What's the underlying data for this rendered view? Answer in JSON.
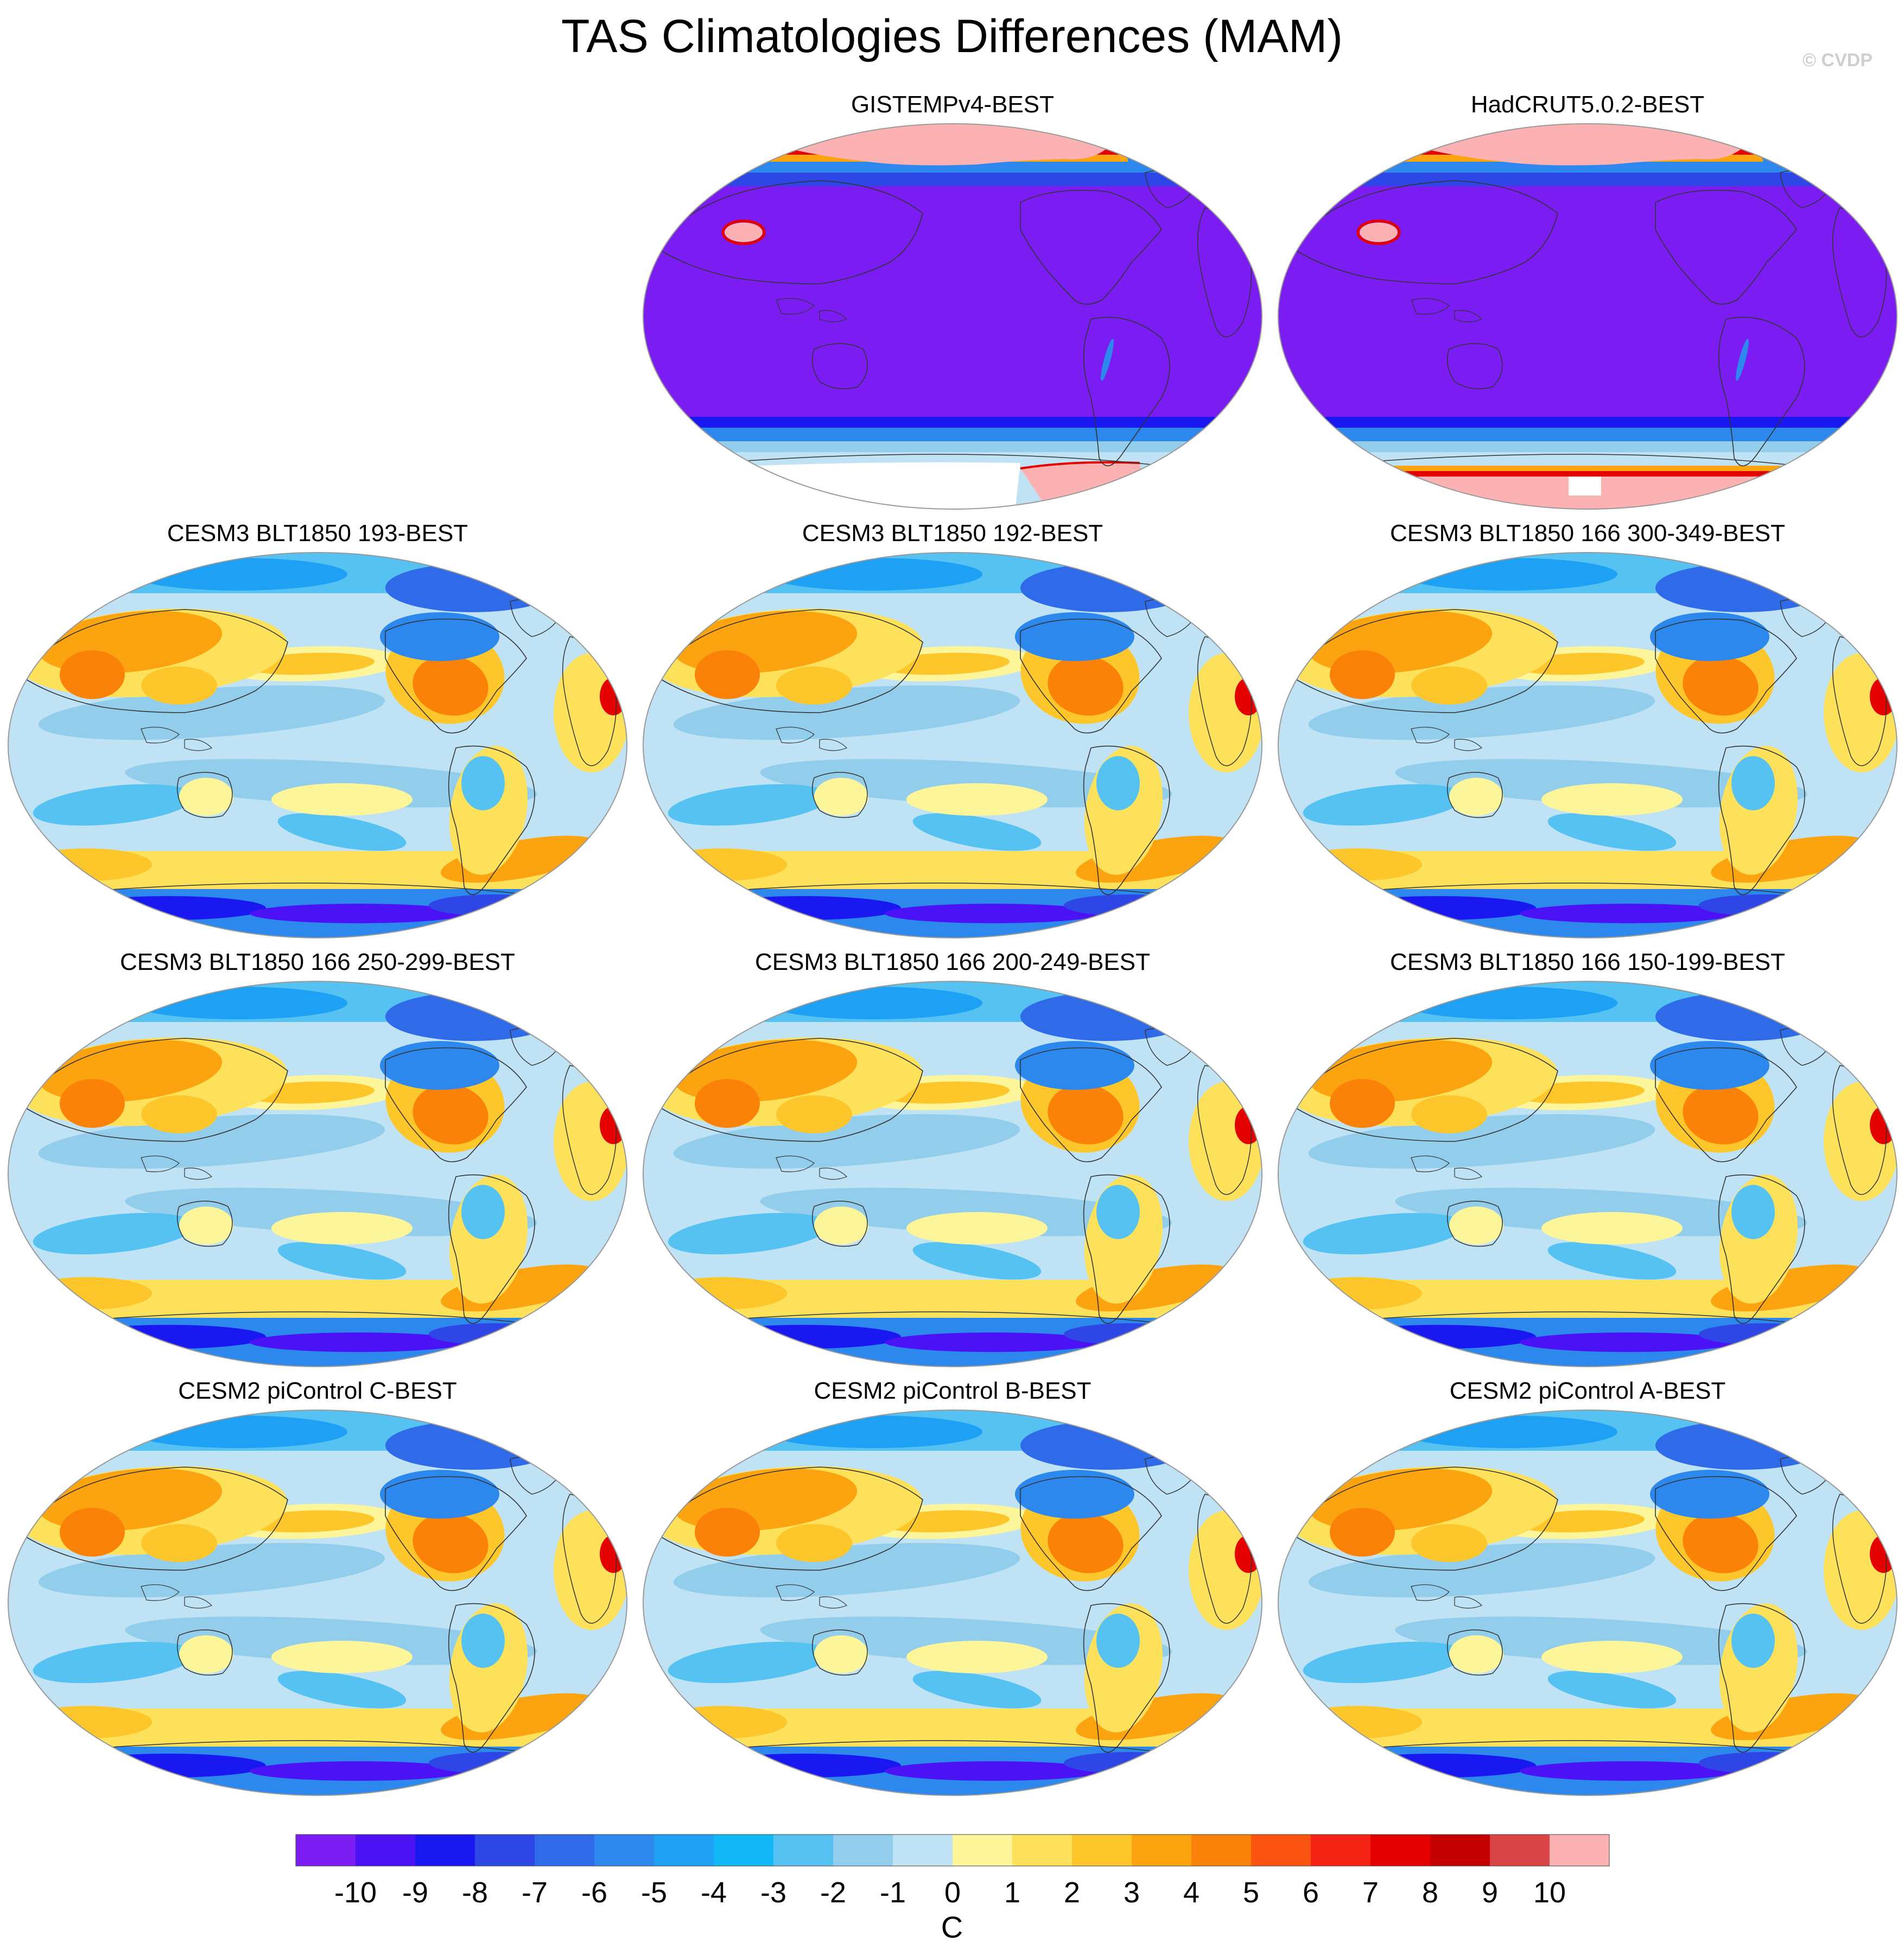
{
  "title": "TAS Climatologies Differences (MAM)",
  "watermark": "© CVDP",
  "panels": [
    {
      "label": "GISTEMPv4-BEST",
      "style": "obs_gistemp"
    },
    {
      "label": "HadCRUT5.0.2-BEST",
      "style": "obs_hadcrut"
    },
    {
      "label": "CESM3 BLT1850 193-BEST",
      "style": "model"
    },
    {
      "label": "CESM3 BLT1850 192-BEST",
      "style": "model"
    },
    {
      "label": "CESM3 BLT1850 166 300-349-BEST",
      "style": "model"
    },
    {
      "label": "CESM3 BLT1850 166 250-299-BEST",
      "style": "model"
    },
    {
      "label": "CESM3 BLT1850 166 200-249-BEST",
      "style": "model"
    },
    {
      "label": "CESM3 BLT1850 166 150-199-BEST",
      "style": "model"
    },
    {
      "label": "CESM2 piControl C-BEST",
      "style": "model"
    },
    {
      "label": "CESM2 piControl B-BEST",
      "style": "model"
    },
    {
      "label": "CESM2 piControl A-BEST",
      "style": "model"
    }
  ],
  "colorbar": {
    "labels": [
      "-10",
      "-9",
      "-8",
      "-7",
      "-6",
      "-5",
      "-4",
      "-3",
      "-2",
      "-1",
      "0",
      "1",
      "2",
      "3",
      "4",
      "5",
      "6",
      "7",
      "8",
      "9",
      "10"
    ],
    "unit": "C",
    "colors": [
      "#7b1cf2",
      "#4b12f5",
      "#1a18f0",
      "#2f46e6",
      "#2f6ae8",
      "#2d88ee",
      "#1ea0f5",
      "#12b8f5",
      "#55c2f2",
      "#92cdeb",
      "#bfe3f5",
      "#fdf59a",
      "#fde15a",
      "#fdc62a",
      "#fca310",
      "#fb8208",
      "#fb5410",
      "#f52314",
      "#e50000",
      "#c40000",
      "#d94447",
      "#fcb2b2"
    ]
  }
}
